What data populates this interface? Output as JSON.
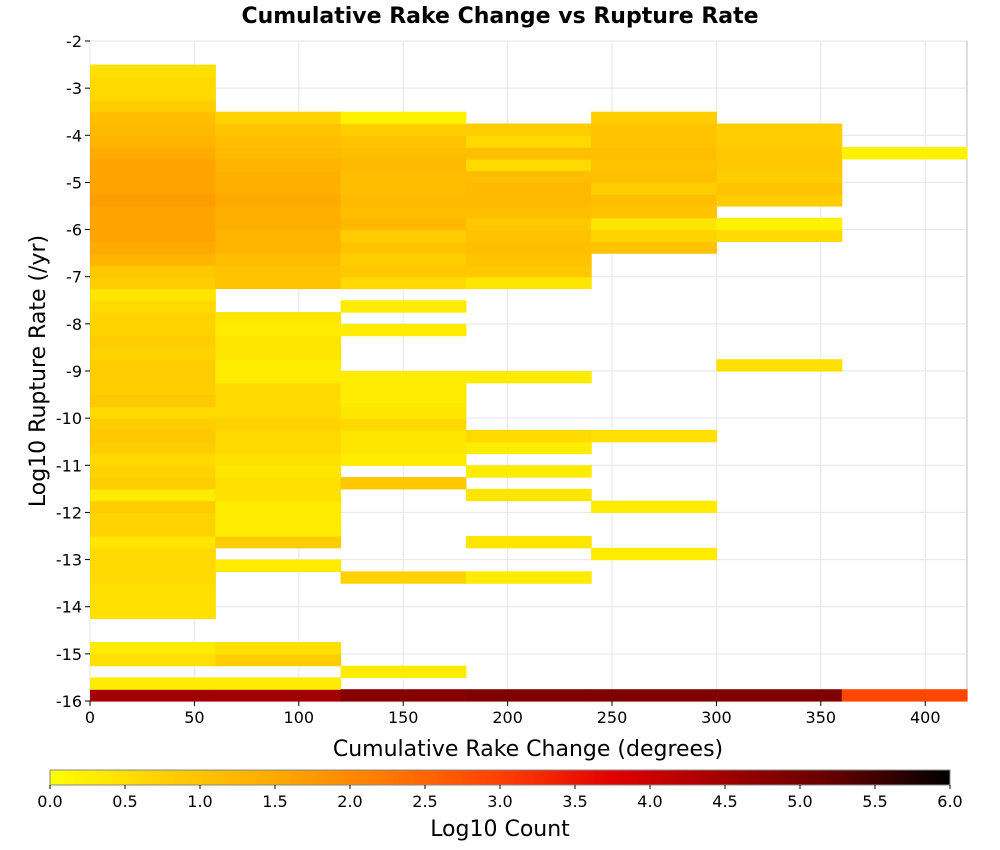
{
  "chart_data": {
    "type": "heatmap",
    "title": "Cumulative Rake Change vs Rupture Rate",
    "xlabel": "Cumulative Rake Change (degrees)",
    "ylabel": "Log10 Rupture Rate (/yr)",
    "xlim": [
      0,
      420
    ],
    "ylim": [
      -16,
      -2
    ],
    "x_bin_width": 60,
    "y_bin_height": 0.25,
    "x_ticks": [
      0,
      50,
      100,
      150,
      200,
      250,
      300,
      350,
      400
    ],
    "y_ticks": [
      -2,
      -3,
      -4,
      -5,
      -6,
      -7,
      -8,
      -9,
      -10,
      -11,
      -12,
      -13,
      -14,
      -15,
      -16
    ],
    "grid": true,
    "colorbar": {
      "label": "Log10 Count",
      "min": 0,
      "max": 6,
      "ticks": [
        "0.0",
        "0.5",
        "1.0",
        "1.5",
        "2.0",
        "2.5",
        "3.0",
        "3.5",
        "4.0",
        "4.5",
        "5.0",
        "5.5",
        "6.0"
      ],
      "stops": [
        "#ffff00",
        "#ffd000",
        "#ffaa00",
        "#ff7800",
        "#ff4000",
        "#e00000",
        "#a00000",
        "#600000",
        "#000000"
      ]
    },
    "columns": [
      {
        "x_start": 0,
        "cells": [
          [
            -16,
            4.5
          ],
          [
            -15.75,
            0.3
          ],
          [
            -15.25,
            0.5
          ],
          [
            -15,
            0.3
          ],
          [
            -14.25,
            0.5
          ],
          [
            -14,
            0.5
          ],
          [
            -13.75,
            0.5
          ],
          [
            -13.5,
            0.6
          ],
          [
            -13.25,
            0.6
          ],
          [
            -13,
            0.6
          ],
          [
            -12.75,
            0.4
          ],
          [
            -12.5,
            0.7
          ],
          [
            -12.25,
            0.7
          ],
          [
            -12,
            0.8
          ],
          [
            -11.75,
            0.3
          ],
          [
            -11.5,
            0.8
          ],
          [
            -11.25,
            0.7
          ],
          [
            -11,
            0.6
          ],
          [
            -10.75,
            0.8
          ],
          [
            -10.5,
            0.9
          ],
          [
            -10.25,
            0.8
          ],
          [
            -10,
            0.6
          ],
          [
            -9.75,
            0.9
          ],
          [
            -9.5,
            0.8
          ],
          [
            -9.25,
            0.8
          ],
          [
            -9,
            0.8
          ],
          [
            -8.75,
            0.7
          ],
          [
            -8.5,
            0.8
          ],
          [
            -8.25,
            0.7
          ],
          [
            -8,
            0.7
          ],
          [
            -7.75,
            0.6
          ],
          [
            -7.5,
            0.4
          ],
          [
            -7.25,
            0.8
          ],
          [
            -7,
            0.9
          ],
          [
            -6.75,
            1.3
          ],
          [
            -6.5,
            1.5
          ],
          [
            -6.25,
            1.6
          ],
          [
            -6,
            1.6
          ],
          [
            -5.75,
            1.6
          ],
          [
            -5.5,
            1.7
          ],
          [
            -5.25,
            1.6
          ],
          [
            -5,
            1.6
          ],
          [
            -4.75,
            1.6
          ],
          [
            -4.5,
            1.5
          ],
          [
            -4.25,
            1.3
          ],
          [
            -4,
            1.2
          ],
          [
            -3.75,
            1.1
          ],
          [
            -3.5,
            0.8
          ],
          [
            -3.25,
            0.6
          ],
          [
            -3,
            0.6
          ],
          [
            -2.75,
            0.5
          ]
        ]
      },
      {
        "x_start": 60,
        "cells": [
          [
            -16,
            4.5
          ],
          [
            -15.75,
            0.3
          ],
          [
            -15.25,
            0.8
          ],
          [
            -15,
            0.5
          ],
          [
            -13.25,
            0.3
          ],
          [
            -12.75,
            0.8
          ],
          [
            -12.5,
            0.3
          ],
          [
            -12.25,
            0.3
          ],
          [
            -12,
            0.3
          ],
          [
            -11.75,
            0.5
          ],
          [
            -11.5,
            0.5
          ],
          [
            -11.25,
            0.4
          ],
          [
            -11,
            0.5
          ],
          [
            -10.75,
            0.6
          ],
          [
            -10.5,
            0.6
          ],
          [
            -10.25,
            0.7
          ],
          [
            -10,
            0.6
          ],
          [
            -9.75,
            0.6
          ],
          [
            -9.5,
            0.6
          ],
          [
            -9.25,
            0.3
          ],
          [
            -9,
            0.3
          ],
          [
            -8.75,
            0.4
          ],
          [
            -8.5,
            0.4
          ],
          [
            -8.25,
            0.3
          ],
          [
            -8,
            0.4
          ],
          [
            -7.25,
            1.0
          ],
          [
            -7,
            1.0
          ],
          [
            -6.75,
            1.1
          ],
          [
            -6.5,
            1.3
          ],
          [
            -6.25,
            1.3
          ],
          [
            -6,
            1.4
          ],
          [
            -5.75,
            1.4
          ],
          [
            -5.5,
            1.5
          ],
          [
            -5.25,
            1.4
          ],
          [
            -5,
            1.4
          ],
          [
            -4.75,
            1.3
          ],
          [
            -4.5,
            1.2
          ],
          [
            -4.25,
            1.1
          ],
          [
            -4,
            1.0
          ],
          [
            -3.75,
            0.7
          ]
        ]
      },
      {
        "x_start": 120,
        "cells": [
          [
            -16,
            4.8
          ],
          [
            -15.5,
            0.3
          ],
          [
            -13.5,
            0.7
          ],
          [
            -11.5,
            0.9
          ],
          [
            -11,
            0.3
          ],
          [
            -10.75,
            0.4
          ],
          [
            -10.5,
            0.4
          ],
          [
            -10.25,
            0.6
          ],
          [
            -10,
            0.4
          ],
          [
            -9.75,
            0.3
          ],
          [
            -9.5,
            0.3
          ],
          [
            -9.25,
            0.3
          ],
          [
            -8.25,
            0.3
          ],
          [
            -7.75,
            0.3
          ],
          [
            -7.25,
            0.6
          ],
          [
            -7,
            0.9
          ],
          [
            -6.75,
            0.8
          ],
          [
            -6.5,
            1.0
          ],
          [
            -6.25,
            0.8
          ],
          [
            -6,
            1.2
          ],
          [
            -5.75,
            1.1
          ],
          [
            -5.5,
            1.2
          ],
          [
            -5.25,
            1.1
          ],
          [
            -5,
            1.1
          ],
          [
            -4.75,
            1.2
          ],
          [
            -4.5,
            1.1
          ],
          [
            -4.25,
            1.0
          ],
          [
            -4,
            0.8
          ],
          [
            -3.75,
            0.2
          ]
        ]
      },
      {
        "x_start": 180,
        "cells": [
          [
            -16,
            4.9
          ],
          [
            -13.5,
            0.3
          ],
          [
            -12.75,
            0.4
          ],
          [
            -11.75,
            0.4
          ],
          [
            -11.25,
            0.3
          ],
          [
            -10.75,
            0.3
          ],
          [
            -10.5,
            0.6
          ],
          [
            -9.25,
            0.3
          ],
          [
            -7.25,
            0.4
          ],
          [
            -7,
            0.9
          ],
          [
            -6.75,
            1.0
          ],
          [
            -6.5,
            1.1
          ],
          [
            -6.25,
            1.0
          ],
          [
            -6,
            0.9
          ],
          [
            -5.75,
            1.1
          ],
          [
            -5.5,
            1.2
          ],
          [
            -5.25,
            1.2
          ],
          [
            -5,
            1.1
          ],
          [
            -4.75,
            0.6
          ],
          [
            -4.5,
            1.1
          ],
          [
            -4.25,
            0.6
          ],
          [
            -4,
            0.8
          ]
        ]
      },
      {
        "x_start": 240,
        "cells": [
          [
            -16,
            4.9
          ],
          [
            -13,
            0.3
          ],
          [
            -12,
            0.3
          ],
          [
            -10.5,
            0.5
          ],
          [
            -6.5,
            1.0
          ],
          [
            -6.25,
            0.7
          ],
          [
            -6,
            0.4
          ],
          [
            -5.75,
            1.0
          ],
          [
            -5.5,
            1.1
          ],
          [
            -5.25,
            0.8
          ],
          [
            -5,
            1.1
          ],
          [
            -4.75,
            1.0
          ],
          [
            -4.5,
            1.1
          ],
          [
            -4.25,
            1.0
          ],
          [
            -4,
            1.0
          ],
          [
            -3.75,
            0.8
          ]
        ]
      },
      {
        "x_start": 300,
        "cells": [
          [
            -16,
            4.9
          ],
          [
            -9,
            0.5
          ],
          [
            -6.25,
            0.6
          ],
          [
            -6,
            0.2
          ],
          [
            -5.5,
            0.8
          ],
          [
            -5.25,
            1.0
          ],
          [
            -5,
            0.8
          ],
          [
            -4.75,
            0.9
          ],
          [
            -4.5,
            0.9
          ],
          [
            -4.25,
            0.8
          ],
          [
            -4,
            0.8
          ]
        ]
      },
      {
        "x_start": 360,
        "cells": [
          [
            -16,
            2.9
          ],
          [
            -4.5,
            0.2
          ]
        ]
      }
    ]
  }
}
